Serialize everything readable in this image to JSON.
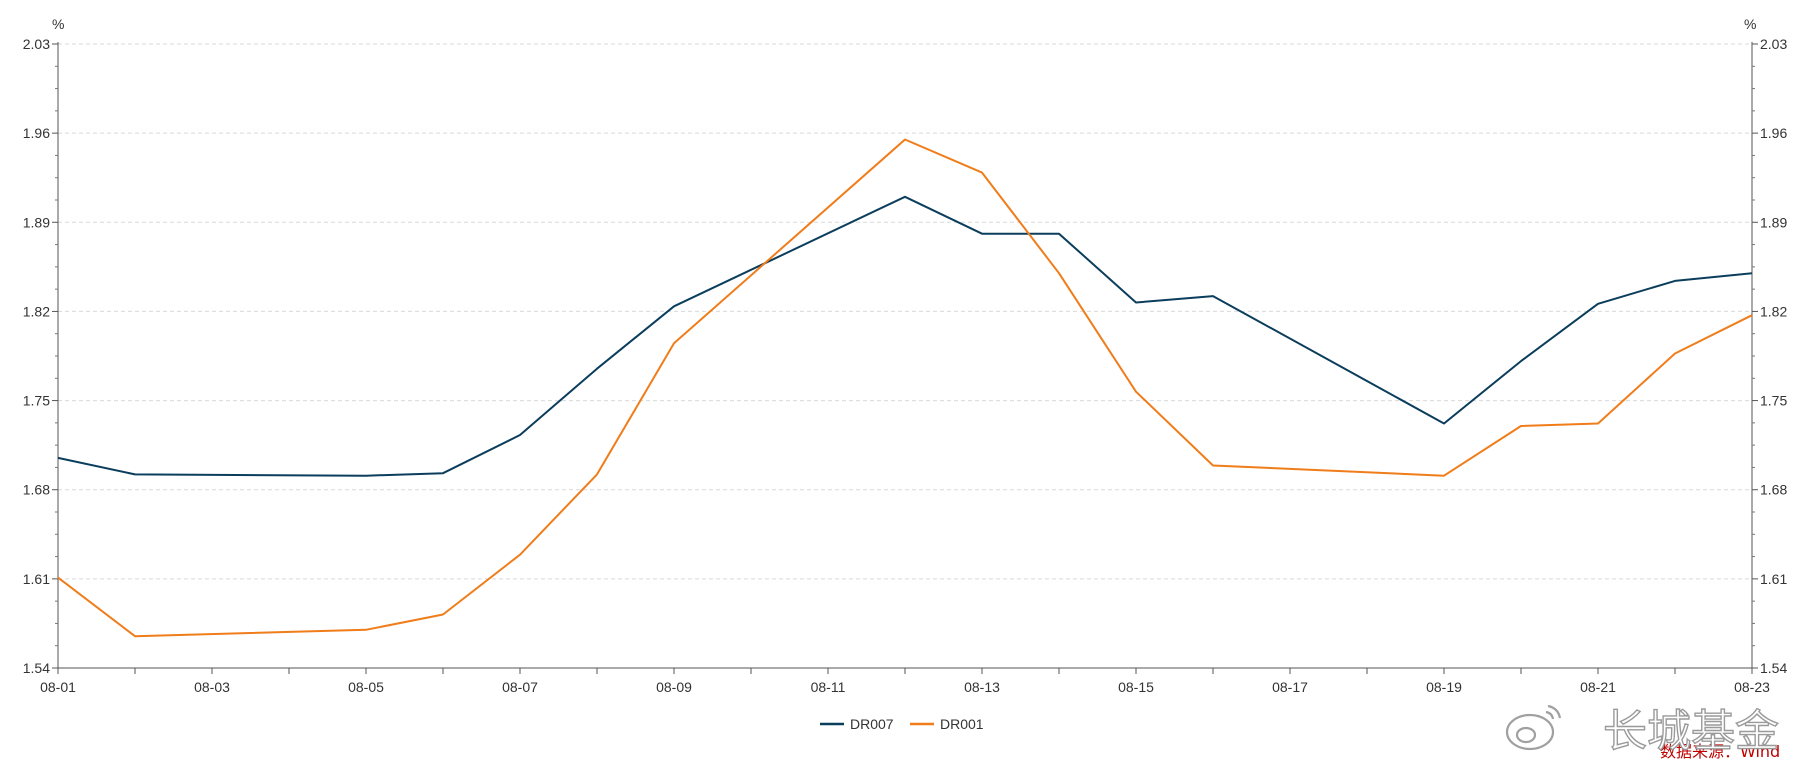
{
  "chart_data": {
    "type": "line",
    "x": [
      "08-01",
      "08-02",
      "08-05",
      "08-06",
      "08-07",
      "08-08",
      "08-09",
      "08-12",
      "08-13",
      "08-14",
      "08-15",
      "08-16",
      "08-19",
      "08-20",
      "08-21",
      "08-22",
      "08-23"
    ],
    "xlim": [
      "08-01",
      "08-23"
    ],
    "x_ticks": [
      "08-01",
      "08-03",
      "08-05",
      "08-07",
      "08-09",
      "08-11",
      "08-13",
      "08-15",
      "08-17",
      "08-19",
      "08-21",
      "08-23"
    ],
    "series": [
      {
        "name": "DR007",
        "color": "#0b3d5c",
        "values": [
          1.705,
          1.692,
          1.691,
          1.693,
          1.723,
          1.775,
          1.824,
          1.91,
          1.881,
          1.881,
          1.827,
          1.832,
          1.732,
          1.781,
          1.826,
          1.844,
          1.85
        ]
      },
      {
        "name": "DR001",
        "color": "#f07c1a",
        "values": [
          1.611,
          1.565,
          1.57,
          1.582,
          1.629,
          1.692,
          1.795,
          1.955,
          1.929,
          1.85,
          1.757,
          1.699,
          1.691,
          1.73,
          1.732,
          1.787,
          1.817
        ]
      }
    ],
    "ylim": [
      1.54,
      2.03
    ],
    "y_ticks": [
      "1.54",
      "1.61",
      "1.68",
      "1.75",
      "1.82",
      "1.89",
      "1.96",
      "2.03"
    ],
    "y_unit_left": "%",
    "y_unit_right": "%",
    "grid": true,
    "legend_position": "bottom-center"
  },
  "source_note": "数据来源：Wind",
  "watermark": "长城基金"
}
